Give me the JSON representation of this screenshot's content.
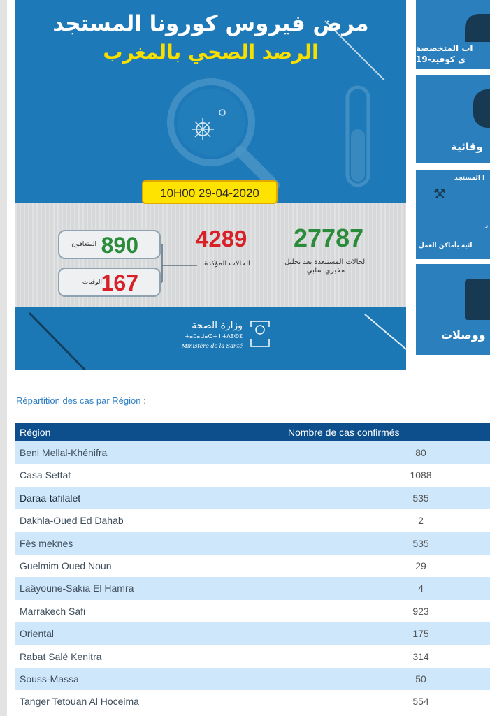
{
  "banner": {
    "title": "مرض فيروس كورونا المستجد",
    "subtitle": "الرصد الصحي بالمغرب",
    "date": "10H00  29-04-2020",
    "tested_value": "27787",
    "tested_label": "الحالات المستبعدة بعد تحليل مخبري سلبي",
    "confirmed_value": "4289",
    "confirmed_label": "الحالات المؤكدة",
    "recovered_value": "890",
    "recovered_label": "المتعافون",
    "deaths_value": "167",
    "deaths_label": "الوفيات",
    "ministry_arabic": "وزارة الصحة",
    "ministry_tifinagh": "ⵜⴰⵎⴰⵡⴰⵙⵜ ⵏ ⵜⴷⵓⵙⵉ",
    "ministry_french": "Ministère de la Santé"
  },
  "side_panels": {
    "panel1_line1": "ات المتخصصة",
    "panel1_line2": "ى كوفيد-19",
    "panel2_text": "وقائية",
    "panel3_top": "ا المستجد",
    "panel3_mid": "ر",
    "panel3_bottom": "ائية بأماكن العمل",
    "panel4_text": "ووصلات"
  },
  "region_section": {
    "heading": "Répartition des cas par Région :",
    "col_region": "Région",
    "col_count": "Nombre de cas confirmés",
    "rows": [
      {
        "region": "Beni Mellal-Khénifra",
        "count": "80"
      },
      {
        "region": "Casa Settat",
        "count": "1088"
      },
      {
        "region": "Daraa-tafilalet",
        "count": "535"
      },
      {
        "region": "Dakhla-Oued Ed Dahab",
        "count": "2"
      },
      {
        "region": "Fès meknes",
        "count": "535"
      },
      {
        "region": "Guelmim Oued Noun",
        "count": "29"
      },
      {
        "region": "Laâyoune-Sakia El Hamra",
        "count": "4"
      },
      {
        "region": "Marrakech Safi",
        "count": "923"
      },
      {
        "region": "Oriental",
        "count": "175"
      },
      {
        "region": "Rabat Salé Kenitra",
        "count": "314"
      },
      {
        "region": "Souss-Massa",
        "count": "50"
      },
      {
        "region": "Tanger Tetouan Al Hoceima",
        "count": "554"
      }
    ]
  }
}
